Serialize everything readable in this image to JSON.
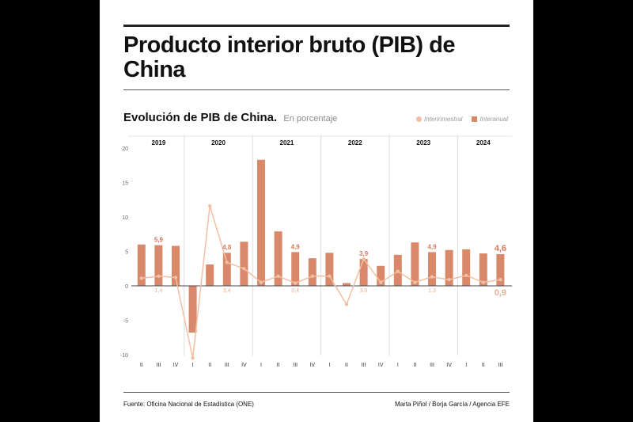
{
  "title": "Producto interior bruto (PIB) de China",
  "subtitle": "Evolución de PIB de China.",
  "unit": "En porcentaje",
  "legend": {
    "line": "Interirimestral",
    "bar": "Interanual"
  },
  "source": "Fuente: Oficina Nacional de Estadística (ONE)",
  "credits": "Marta Piñol / Borja García / Agencia EFE",
  "colors": {
    "bar": "#d9896a",
    "line": "#f1c0a4",
    "label_bar": "#d07b59",
    "label_line": "#e7b294"
  },
  "chart_data": {
    "type": "bar",
    "years": [
      {
        "label": "2019",
        "count": 3
      },
      {
        "label": "2020",
        "count": 4
      },
      {
        "label": "2021",
        "count": 4
      },
      {
        "label": "2022",
        "count": 4
      },
      {
        "label": "2023",
        "count": 4
      },
      {
        "label": "2024",
        "count": 3
      }
    ],
    "categories": [
      "II",
      "III",
      "IV",
      "I",
      "II",
      "III",
      "IV",
      "I",
      "II",
      "III",
      "IV",
      "I",
      "II",
      "III",
      "IV",
      "I",
      "II",
      "III",
      "IV",
      "I",
      "II",
      "III"
    ],
    "series": [
      {
        "name": "Interanual",
        "type": "bar",
        "values": [
          6.0,
          5.9,
          5.8,
          -6.8,
          3.1,
          4.8,
          6.4,
          18.3,
          7.9,
          4.9,
          4.0,
          4.8,
          0.4,
          3.9,
          2.9,
          4.5,
          6.3,
          4.9,
          5.2,
          5.3,
          4.7,
          4.6
        ]
      },
      {
        "name": "Interirimestral",
        "type": "line",
        "values": [
          1.1,
          1.4,
          1.2,
          -10.5,
          11.6,
          3.4,
          2.5,
          0.5,
          1.4,
          0.4,
          1.4,
          1.4,
          -2.7,
          3.9,
          0.5,
          2.1,
          0.5,
          1.3,
          0.9,
          1.5,
          0.5,
          0.9
        ]
      }
    ],
    "bar_labels": [
      {
        "index": 1,
        "text": "5,9"
      },
      {
        "index": 5,
        "text": "4,8"
      },
      {
        "index": 9,
        "text": "4,9"
      },
      {
        "index": 13,
        "text": "3,9"
      },
      {
        "index": 17,
        "text": "4,9"
      },
      {
        "index": 21,
        "text": "4,6"
      }
    ],
    "line_labels": [
      {
        "index": 1,
        "text": "1,4"
      },
      {
        "index": 5,
        "text": "3,4"
      },
      {
        "index": 9,
        "text": "0,4"
      },
      {
        "index": 13,
        "text": "3,9"
      },
      {
        "index": 17,
        "text": "1,3"
      },
      {
        "index": 21,
        "text": "0,9"
      }
    ],
    "yticks": [
      20,
      15,
      10,
      5,
      0,
      -5,
      -10
    ],
    "ytick_labels": [
      "20",
      "15",
      "10",
      "5",
      "0",
      "-5",
      "-10"
    ],
    "ylim": [
      -10,
      20
    ],
    "grid": "vertical-year-separators",
    "legend_position": "top-right"
  }
}
